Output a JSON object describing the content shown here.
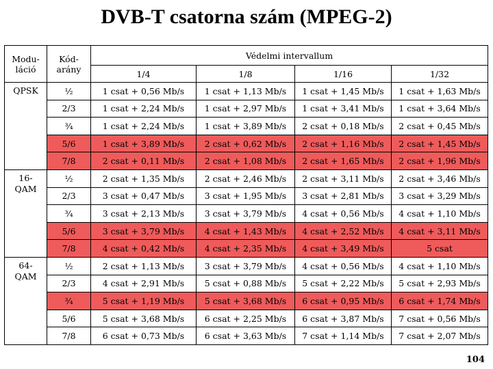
{
  "title": "DVB-T csatorna szám (MPEG-2)",
  "header": {
    "col_modulation_line1": "Modu-",
    "col_modulation_line2": "láció",
    "col_coderate_line1": "Kód-",
    "col_coderate_line2": "arány",
    "guard_interval": "Védelmi intervallum",
    "guard_values": [
      "1/4",
      "1/8",
      "1/16",
      "1/32"
    ]
  },
  "highlight_color": "#ef5b5b",
  "groups": [
    {
      "modulation_line1": "QPSK",
      "modulation_line2": "",
      "rows": [
        {
          "rate": "½",
          "highlight": false,
          "values": [
            "1 csat + 0,56 Mb/s",
            "1 csat + 1,13 Mb/s",
            "1 csat + 1,45 Mb/s",
            "1 csat + 1,63 Mb/s"
          ]
        },
        {
          "rate": "2/3",
          "highlight": false,
          "values": [
            "1 csat + 2,24 Mb/s",
            "1 csat + 2,97 Mb/s",
            "1 csat + 3,41 Mb/s",
            "1 csat + 3,64 Mb/s"
          ]
        },
        {
          "rate": "¾",
          "highlight": false,
          "values": [
            "1 csat + 2,24 Mb/s",
            "1 csat + 3,89 Mb/s",
            "2 csat + 0,18 Mb/s",
            "2 csat + 0,45 Mb/s"
          ]
        },
        {
          "rate": "5/6",
          "highlight": true,
          "values": [
            "1 csat + 3,89 Mb/s",
            "2 csat + 0,62 Mb/s",
            "2 csat + 1,16 Mb/s",
            "2 csat + 1,45 Mb/s"
          ]
        },
        {
          "rate": "7/8",
          "highlight": true,
          "values": [
            "2 csat + 0,11 Mb/s",
            "2 csat + 1,08 Mb/s",
            "2 csat + 1,65 Mb/s",
            "2 csat + 1,96 Mb/s"
          ]
        }
      ]
    },
    {
      "modulation_line1": "16-",
      "modulation_line2": "QAM",
      "rows": [
        {
          "rate": "½",
          "highlight": false,
          "values": [
            "2 csat + 1,35 Mb/s",
            "2 csat + 2,46 Mb/s",
            "2 csat + 3,11 Mb/s",
            "2 csat + 3,46 Mb/s"
          ]
        },
        {
          "rate": "2/3",
          "highlight": false,
          "values": [
            "3 csat + 0,47 Mb/s",
            "3 csat + 1,95 Mb/s",
            "3 csat + 2,81 Mb/s",
            "3 csat + 3,29 Mb/s"
          ]
        },
        {
          "rate": "¾",
          "highlight": false,
          "values": [
            "3 csat + 2,13 Mb/s",
            "3 csat + 3,79 Mb/s",
            "4 csat + 0,56 Mb/s",
            "4 csat + 1,10 Mb/s"
          ]
        },
        {
          "rate": "5/6",
          "highlight": true,
          "values": [
            "3 csat + 3,79 Mb/s",
            "4 csat + 1,43 Mb/s",
            "4 csat + 2,52 Mb/s",
            "4 csat + 3,11 Mb/s"
          ]
        },
        {
          "rate": "7/8",
          "highlight": true,
          "values": [
            "4 csat + 0,42 Mb/s",
            "4 csat + 2,35 Mb/s",
            "4 csat + 3,49 Mb/s",
            "5 csat"
          ]
        }
      ]
    },
    {
      "modulation_line1": "64-",
      "modulation_line2": "QAM",
      "rows": [
        {
          "rate": "½",
          "highlight": false,
          "values": [
            "2 csat + 1,13 Mb/s",
            "3 csat + 3,79 Mb/s",
            "4 csat + 0,56 Mb/s",
            "4 csat + 1,10 Mb/s"
          ]
        },
        {
          "rate": "2/3",
          "highlight": false,
          "values": [
            "4 csat + 2,91 Mb/s",
            "5 csat + 0,88 Mb/s",
            "5 csat + 2,22 Mb/s",
            "5 csat + 2,93 Mb/s"
          ]
        },
        {
          "rate": "¾",
          "highlight": true,
          "values": [
            "5 csat + 1,19 Mb/s",
            "5 csat + 3,68 Mb/s",
            "6 csat + 0,95 Mb/s",
            "6 csat + 1,74 Mb/s"
          ]
        },
        {
          "rate": "5/6",
          "highlight": false,
          "values": [
            "5 csat + 3,68 Mb/s",
            "6 csat + 2,25 Mb/s",
            "6 csat + 3,87 Mb/s",
            "7 csat + 0,56 Mb/s"
          ]
        },
        {
          "rate": "7/8",
          "highlight": false,
          "values": [
            "6 csat + 0,73 Mb/s",
            "6 csat + 3,63 Mb/s",
            "7 csat + 1,14 Mb/s",
            "7 csat + 2,07 Mb/s"
          ]
        }
      ]
    }
  ],
  "page_number": "104"
}
